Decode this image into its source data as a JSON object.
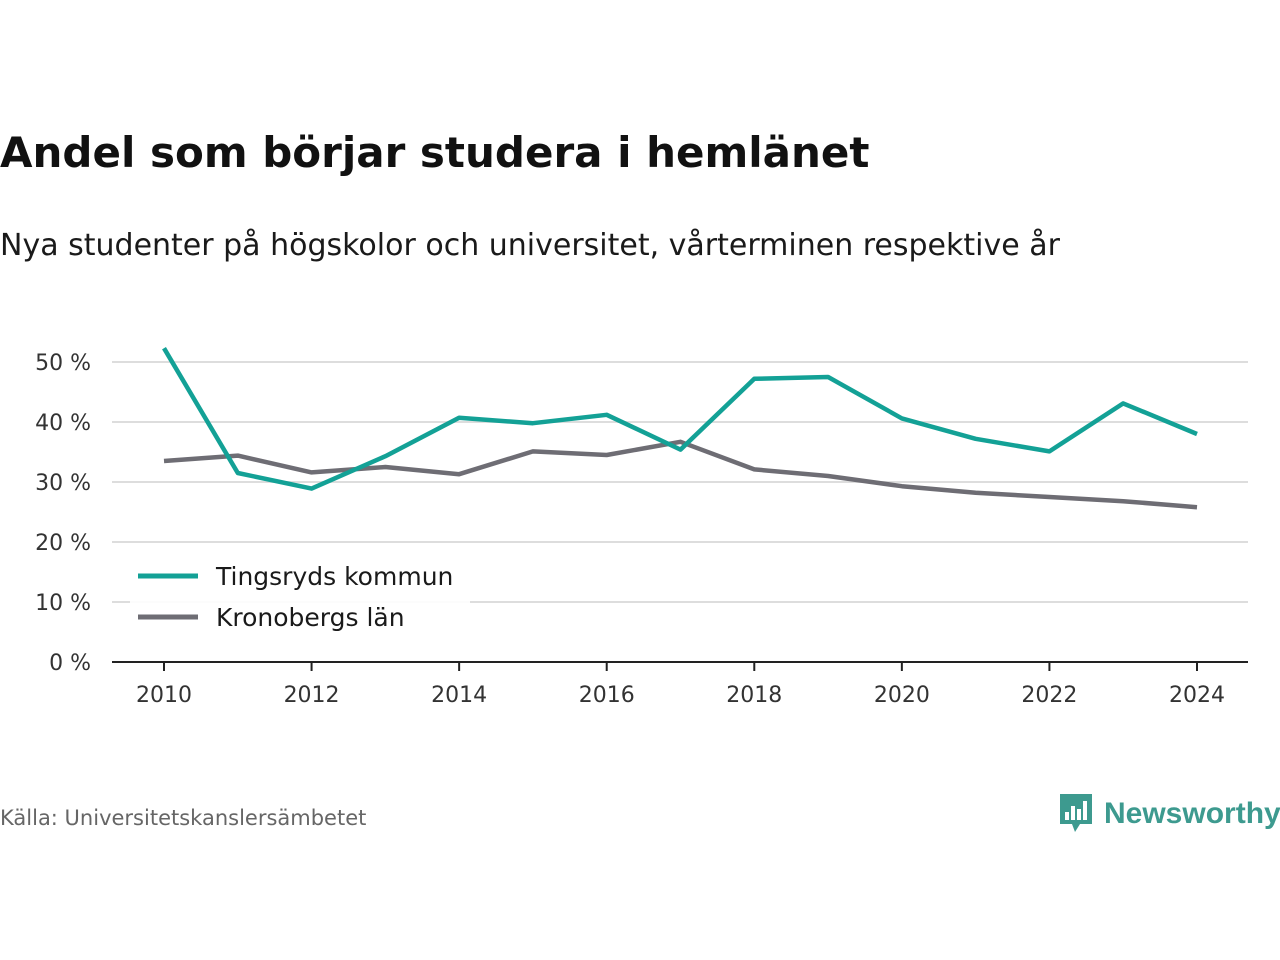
{
  "header": {
    "title": "Andel som börjar studera i hemlänet",
    "subtitle": "Nya studenter på högskolor och universitet, vårterminen respektive år"
  },
  "footer": {
    "source": "Källa: Universitetskanslersämbetet",
    "brand": "Newsworthy",
    "brand_icon": "bar-chart-icon",
    "brand_color": "#3d9a8f"
  },
  "chart_data": {
    "type": "line",
    "x": [
      2010,
      2011,
      2012,
      2013,
      2014,
      2015,
      2016,
      2017,
      2018,
      2019,
      2020,
      2021,
      2022,
      2023,
      2024
    ],
    "xticks": [
      2010,
      2012,
      2014,
      2016,
      2018,
      2020,
      2022,
      2024
    ],
    "ylim": [
      0,
      50
    ],
    "yticks": [
      0,
      10,
      20,
      30,
      40,
      50
    ],
    "ytick_labels": [
      "0 %",
      "10 %",
      "20 %",
      "30 %",
      "40 %",
      "50 %"
    ],
    "grid": true,
    "legend": "bottom-left",
    "series": [
      {
        "name": "Tingsryds kommun",
        "color": "#13a196",
        "values": [
          52.3,
          31.5,
          28.9,
          34.3,
          40.7,
          39.8,
          41.2,
          35.4,
          47.2,
          47.5,
          40.6,
          37.2,
          35.1,
          43.1,
          38.0
        ]
      },
      {
        "name": "Kronobergs län",
        "color": "#6e6d74",
        "values": [
          33.5,
          34.4,
          31.6,
          32.5,
          31.3,
          35.1,
          34.5,
          36.7,
          32.1,
          31.0,
          29.3,
          28.2,
          27.5,
          26.8,
          25.8
        ]
      }
    ]
  }
}
